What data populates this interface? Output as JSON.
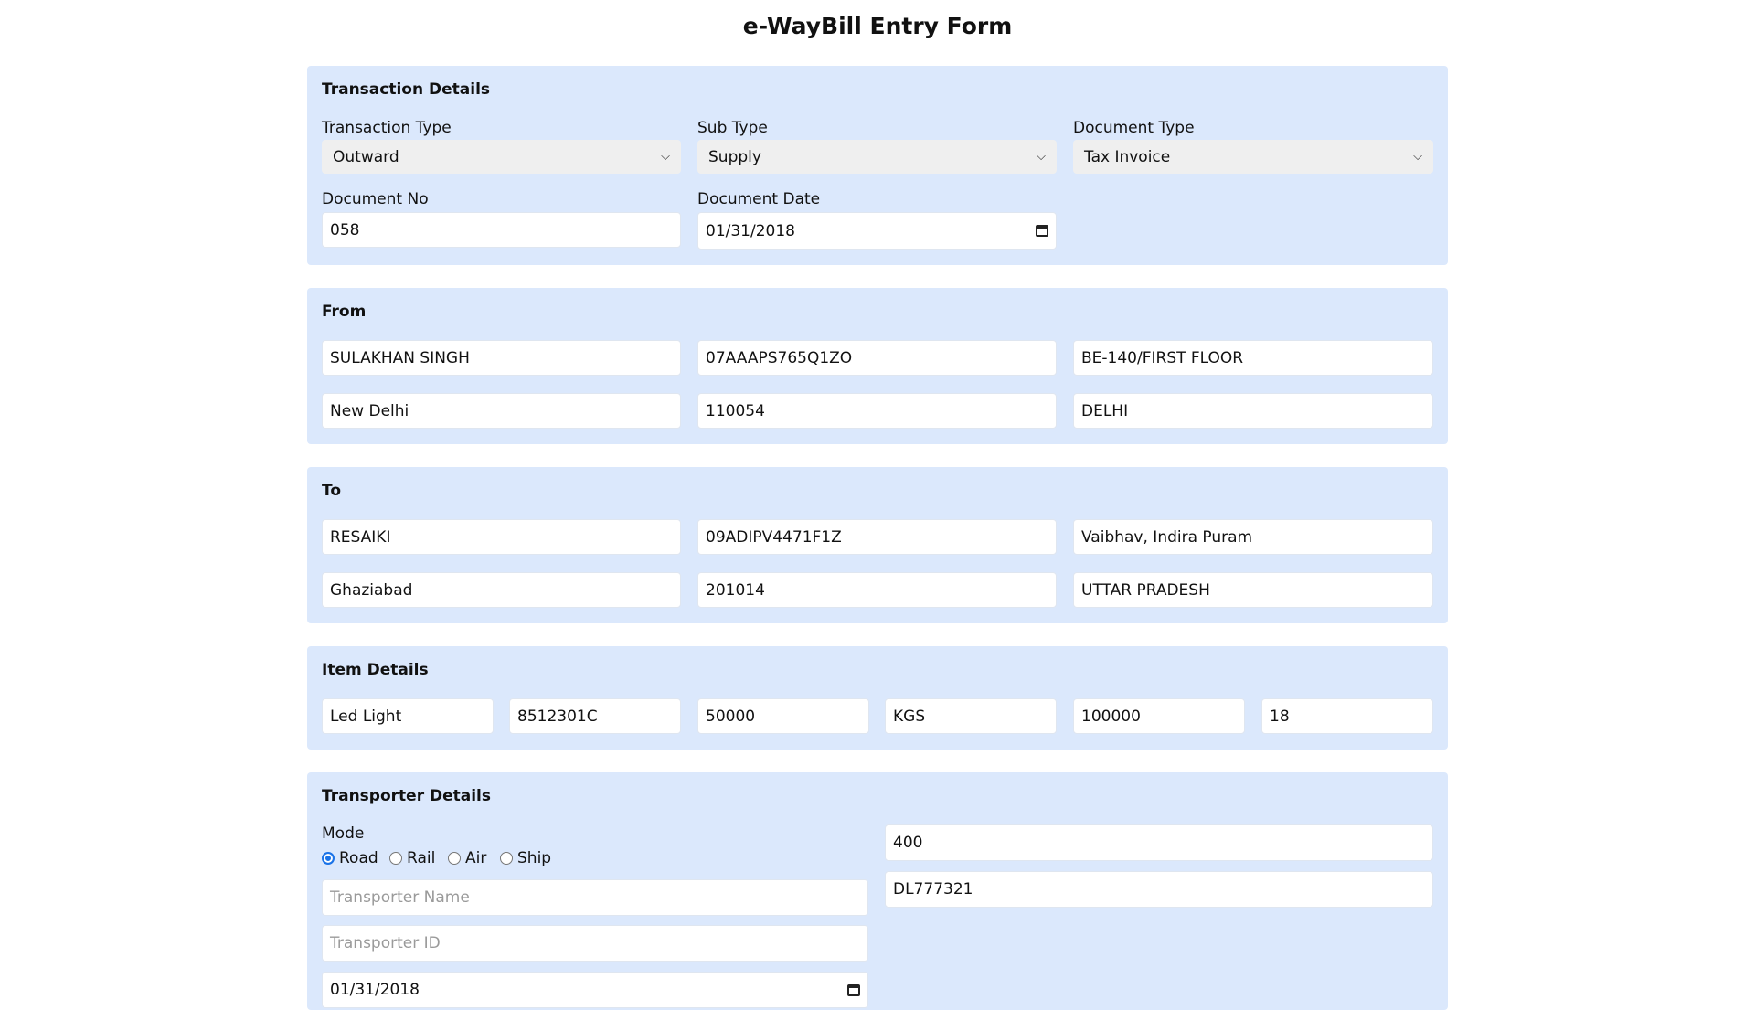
{
  "title": "e-WayBill Entry Form",
  "colors": {
    "section_bg": "#dbe8fc",
    "radio_accent": "#1a73e8"
  },
  "transaction": {
    "heading": "Transaction Details",
    "transaction_type": {
      "label": "Transaction Type",
      "value": "Outward"
    },
    "sub_type": {
      "label": "Sub Type",
      "value": "Supply"
    },
    "document_type": {
      "label": "Document Type",
      "value": "Tax Invoice"
    },
    "document_no": {
      "label": "Document No",
      "value": "058"
    },
    "document_date": {
      "label": "Document Date",
      "value": "01/31/2018"
    }
  },
  "from": {
    "heading": "From",
    "name": "SULAKHAN SINGH",
    "gstin": "07AAAPS765Q1ZO",
    "address": "BE-140/FIRST FLOOR",
    "place": "New Delhi",
    "pincode": "110054",
    "state": "DELHI"
  },
  "to": {
    "heading": "To",
    "name": "RESAIKI",
    "gstin": "09ADIPV4471F1Z",
    "address": "Vaibhav, Indira Puram",
    "place": "Ghaziabad",
    "pincode": "201014",
    "state": "UTTAR PRADESH"
  },
  "items": {
    "heading": "Item Details",
    "product": "Led Light",
    "hsn": "8512301C",
    "quantity": "50000",
    "unit": "KGS",
    "value": "100000",
    "tax_rate": "18"
  },
  "transporter": {
    "heading": "Transporter Details",
    "mode_label": "Mode",
    "modes": [
      {
        "label": "Road",
        "selected": true
      },
      {
        "label": "Rail",
        "selected": false
      },
      {
        "label": "Air",
        "selected": false
      },
      {
        "label": "Ship",
        "selected": false
      }
    ],
    "name_placeholder": "Transporter Name",
    "id_placeholder": "Transporter ID",
    "date": "01/31/2018",
    "distance": "400",
    "vehicle_no": "DL777321"
  }
}
